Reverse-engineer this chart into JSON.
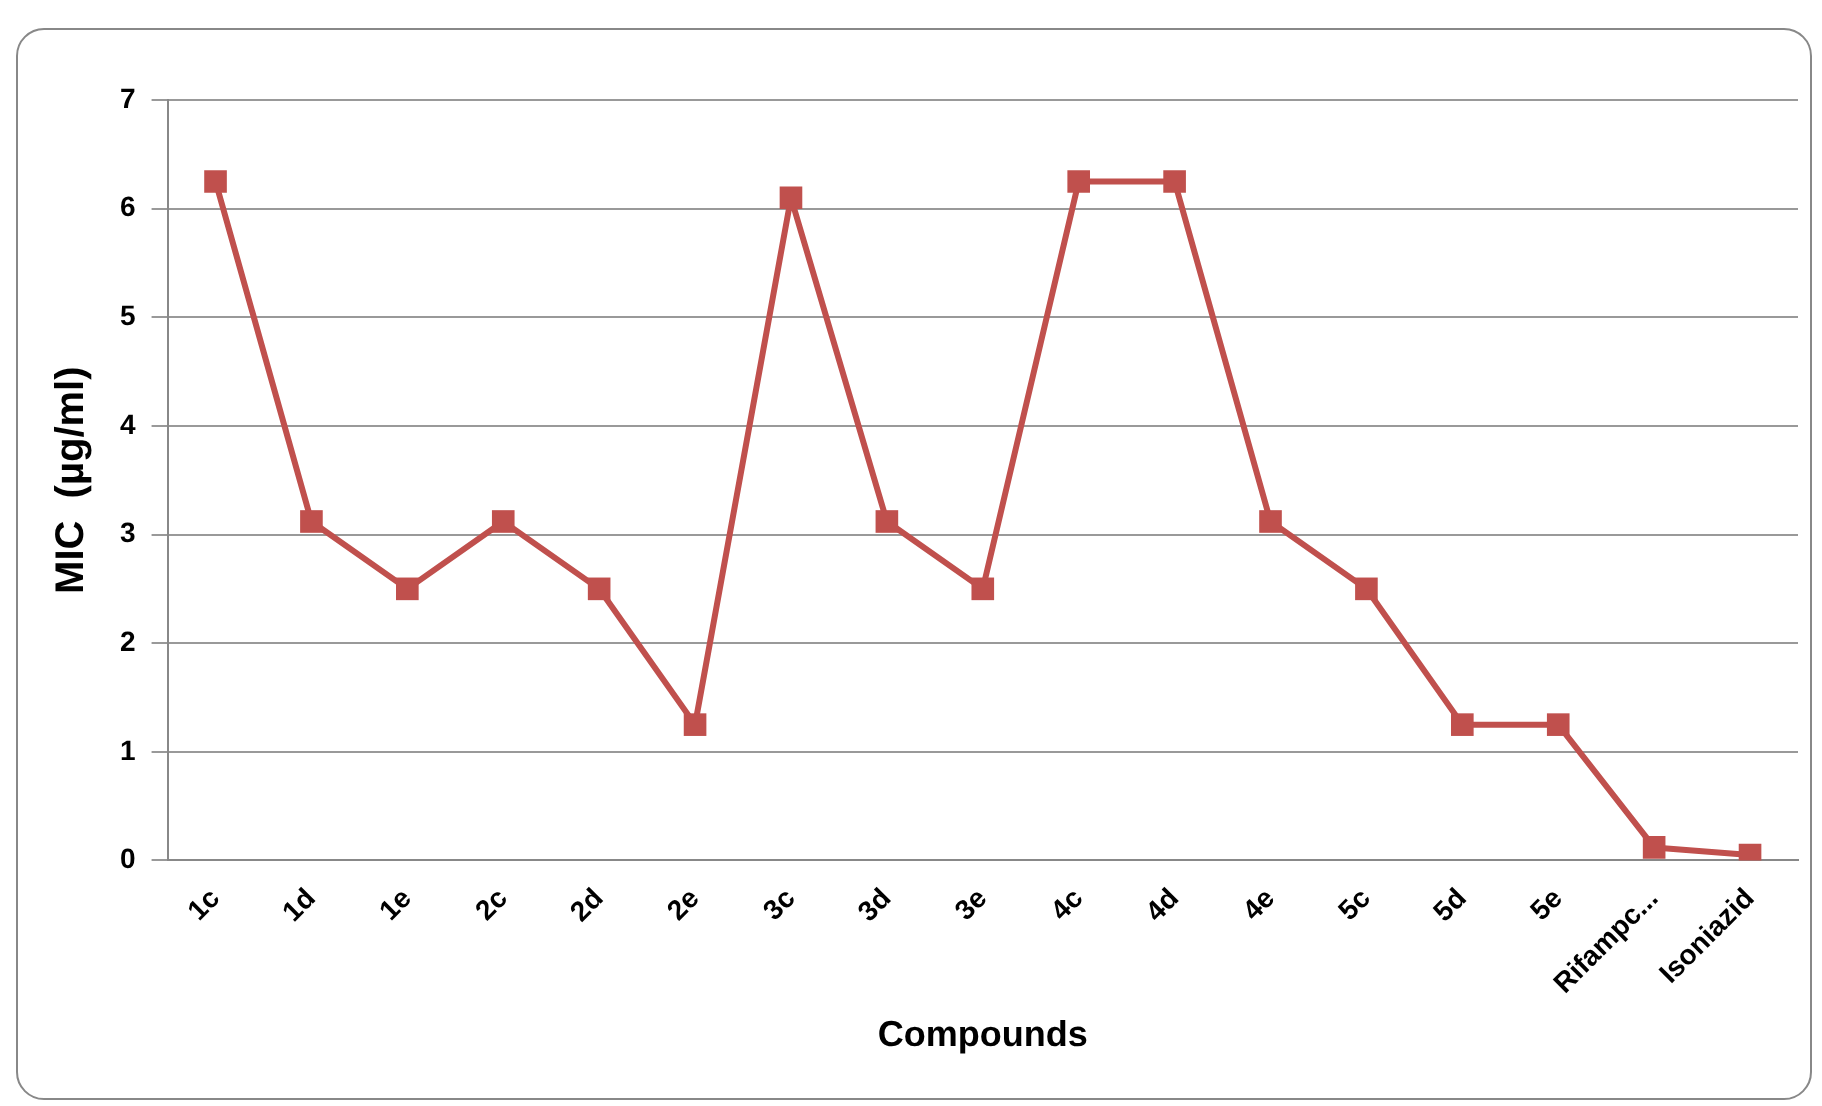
{
  "chart_data": {
    "type": "line",
    "xlabel": "Compounds",
    "ylabel": "MIC  (µg/ml)",
    "categories": [
      "1c",
      "1d",
      "1e",
      "2c",
      "2d",
      "2e",
      "3c",
      "3d",
      "3e",
      "4c",
      "4d",
      "4e",
      "5c",
      "5d",
      "5e",
      "Rifampc...",
      "Isoniazid"
    ],
    "series": [
      {
        "color": "#c0504d",
        "values": [
          6.25,
          3.12,
          2.5,
          3.12,
          2.5,
          1.25,
          6.1,
          3.12,
          2.5,
          6.25,
          6.25,
          3.12,
          2.5,
          1.25,
          1.25,
          0.12,
          0.05
        ]
      }
    ],
    "ylim": [
      0,
      7
    ],
    "yticks": [
      0,
      1,
      2,
      3,
      4,
      5,
      6,
      7
    ],
    "grid": "y",
    "legend": false,
    "marker": "square",
    "line_style": "solid"
  }
}
